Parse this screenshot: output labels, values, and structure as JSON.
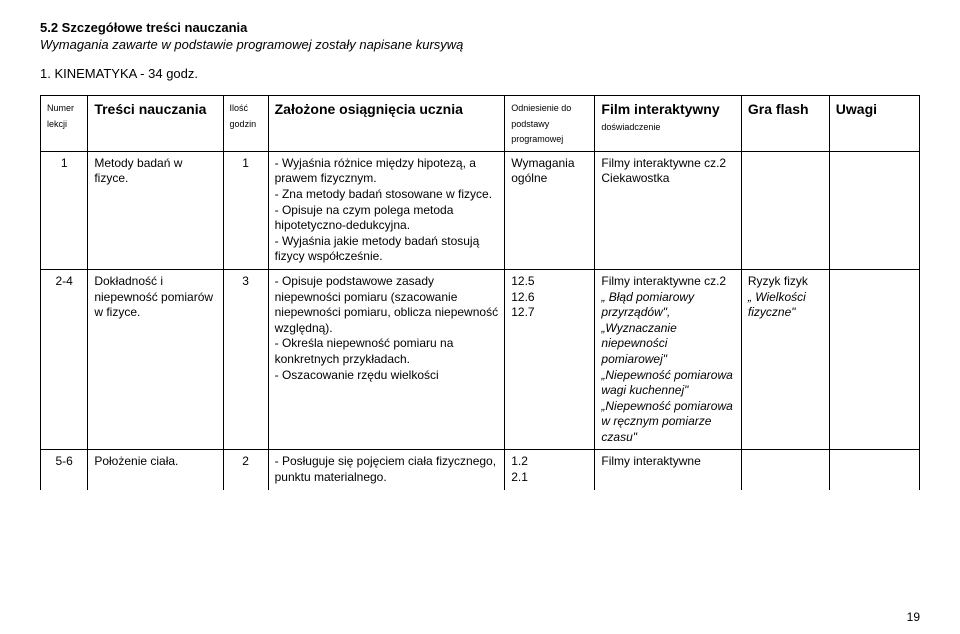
{
  "section": {
    "title": "5.2 Szczegółowe treści nauczania",
    "subtitle": "Wymagania zawarte w podstawie programowej zostały napisane kursywą",
    "kinematyka": "1. KINEMATYKA - 34 godz."
  },
  "headers": {
    "numer": "Numer lekcji",
    "tresci": "Treści nauczania",
    "ilosc": "Ilość godzin",
    "zalozone": "Założone osiągnięcia ucznia",
    "odniesienie": "Odniesienie do podstawy programowej",
    "film": "Film interaktywny",
    "film_sub": "doświadczenie",
    "gra": "Gra flash",
    "uwagi": "Uwagi"
  },
  "rows": [
    {
      "numer": "1",
      "tresci": "Metody badań w fizyce.",
      "ilosc": "1",
      "zalozone": "- Wyjaśnia różnice między hipotezą, a prawem fizycznym.\n- Zna metody badań stosowane w fizyce.\n- Opisuje na czym polega metoda hipotetyczno-dedukcyjna.\n- Wyjaśnia jakie metody badań stosują fizycy współcześnie.",
      "odniesienie": "Wymagania ogólne",
      "film": "Filmy interaktywne cz.2\nCiekawostka",
      "gra": "",
      "uwagi": ""
    },
    {
      "numer": "2-4",
      "tresci": "Dokładność i niepewność pomiarów w fizyce.",
      "ilosc": "3",
      "zalozone": "- Opisuje podstawowe zasady niepewności pomiaru (szacowanie niepewności pomiaru, oblicza niepewność względną).\n- Określa niepewność pomiaru na konkretnych przykładach.\n- Oszacowanie rzędu wielkości",
      "odniesienie": "12.5\n12.6\n12.7",
      "film_line1": "Filmy interaktywne cz.2",
      "film_italic": "„ Błąd pomiarowy przyrządów\",\n„Wyznaczanie niepewności pomiarowej\"\n„Niepewność pomiarowa wagi kuchennej\"\n„Niepewność pomiarowa w ręcznym pomiarze czasu\"",
      "gra": "Ryzyk fizyk",
      "gra_italic": "„ Wielkości fizyczne\"",
      "uwagi": ""
    },
    {
      "numer": "5-6",
      "tresci": "Położenie ciała.",
      "ilosc": "2",
      "zalozone": "- Posługuje się pojęciem ciała fizycznego, punktu materialnego.",
      "odniesienie": "1.2\n2.1",
      "film": "Filmy interaktywne",
      "gra": "",
      "uwagi": ""
    }
  ],
  "page_number": "19",
  "colors": {
    "bg": "#ffffff",
    "text": "#000000",
    "border": "#000000"
  }
}
